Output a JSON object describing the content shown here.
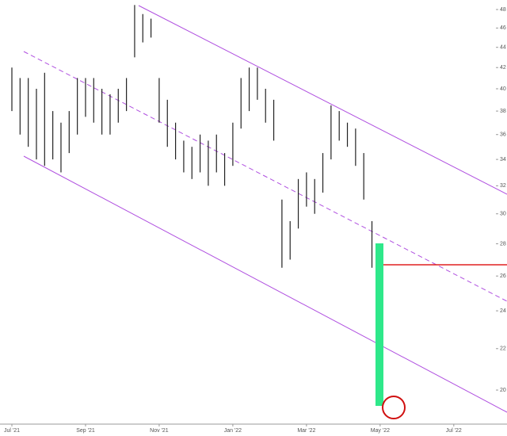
{
  "chart_data": {
    "type": "range-bar",
    "log_scale": true,
    "grid": false,
    "color": "#222222",
    "categories": [
      "Jul '21",
      null,
      null,
      null,
      null,
      null,
      null,
      null,
      null,
      "Sep '21",
      null,
      null,
      null,
      null,
      null,
      null,
      null,
      null,
      "Nov '21",
      null,
      null,
      null,
      null,
      null,
      null,
      null,
      null,
      "Jan '22",
      null,
      null,
      null,
      null,
      null,
      null,
      null,
      null,
      "Mar '22",
      null,
      null,
      null,
      null,
      null,
      null,
      null,
      null,
      "May '22",
      null,
      null,
      null,
      null,
      null,
      null,
      null,
      null,
      "Jul '22",
      null,
      null,
      null,
      null,
      null,
      null
    ],
    "high": [
      42,
      41,
      41,
      40,
      41.5,
      38,
      37,
      38,
      41,
      41,
      41,
      40,
      39.5,
      40,
      41,
      48.5,
      47.5,
      47,
      41,
      39,
      37,
      35.5,
      35,
      36,
      35.5,
      36,
      34.5,
      37,
      41,
      42,
      42,
      40,
      39,
      31,
      29.5,
      32.5,
      33,
      32.5,
      34.5,
      38.5,
      38,
      37,
      36.5,
      34.5,
      29.5,
      null,
      null,
      null,
      null,
      null,
      null,
      null,
      null,
      null,
      null,
      null,
      null,
      null,
      null,
      null,
      null
    ],
    "low": [
      38,
      36,
      35,
      34,
      33.5,
      34,
      33,
      34.5,
      36,
      37.5,
      37,
      36,
      36,
      37,
      38,
      43,
      44.5,
      45,
      37,
      35,
      34,
      33,
      32.5,
      33,
      32,
      33,
      32,
      33.5,
      36.5,
      38,
      39,
      37,
      35.5,
      26.5,
      27,
      29,
      30.5,
      30,
      31.5,
      34,
      35.5,
      35,
      33.5,
      31,
      26.5,
      null,
      null,
      null,
      null,
      null,
      null,
      null,
      null,
      null,
      null,
      null,
      null,
      null,
      null,
      null,
      null
    ],
    "ylim": [
      18.5,
      49
    ],
    "yticks": [
      20,
      22,
      24,
      26,
      28,
      30,
      32,
      34,
      36,
      38,
      40,
      42,
      44,
      46,
      48
    ]
  }
}
